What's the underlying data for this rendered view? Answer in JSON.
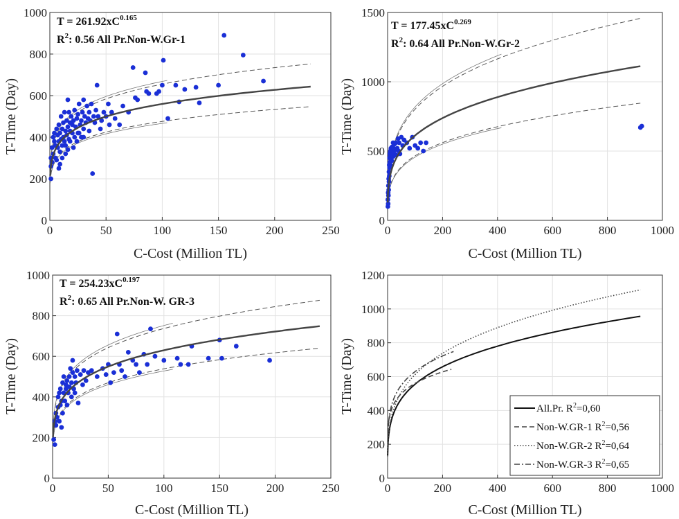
{
  "chart_data": [
    {
      "type": "scatter",
      "xlabel": "C-Cost (Million TL)",
      "ylabel": "T-Time (Day)",
      "xlim": [
        0,
        250
      ],
      "ylim": [
        0,
        1000
      ],
      "xticks": [
        0,
        50,
        100,
        150,
        200,
        250
      ],
      "yticks": [
        0,
        200,
        400,
        600,
        800,
        1000
      ],
      "grid": true,
      "annotation": {
        "line1": "T = 261.92xC",
        "line1_exp": "0.165",
        "r2_label": "R",
        "r2_exp": "2",
        "r2_text": ": 0.56 All Pr.Non-W.Gr-1"
      },
      "fit": {
        "a": 261.92,
        "b": 0.165,
        "xmax": 232
      },
      "bands": {
        "upper": 1.17,
        "lower": 0.85
      },
      "points": [
        [
          1,
          300
        ],
        [
          1,
          260
        ],
        [
          1,
          200
        ],
        [
          2,
          350
        ],
        [
          2,
          280
        ],
        [
          3,
          400
        ],
        [
          3,
          320
        ],
        [
          4,
          380
        ],
        [
          4,
          420
        ],
        [
          5,
          300
        ],
        [
          5,
          360
        ],
        [
          6,
          440
        ],
        [
          6,
          290
        ],
        [
          7,
          410
        ],
        [
          7,
          350
        ],
        [
          8,
          380
        ],
        [
          8,
          460
        ],
        [
          9,
          330
        ],
        [
          9,
          420
        ],
        [
          10,
          390
        ],
        [
          10,
          500
        ],
        [
          11,
          360
        ],
        [
          11,
          440
        ],
        [
          12,
          470
        ],
        [
          12,
          400
        ],
        [
          13,
          380
        ],
        [
          13,
          520
        ],
        [
          14,
          430
        ],
        [
          14,
          360
        ],
        [
          15,
          480
        ],
        [
          15,
          410
        ],
        [
          16,
          450
        ],
        [
          16,
          580
        ],
        [
          17,
          390
        ],
        [
          17,
          520
        ],
        [
          18,
          470
        ],
        [
          18,
          430
        ],
        [
          19,
          500
        ],
        [
          20,
          420
        ],
        [
          20,
          460
        ],
        [
          21,
          480
        ],
        [
          22,
          400
        ],
        [
          22,
          530
        ],
        [
          23,
          450
        ],
        [
          24,
          490
        ],
        [
          25,
          420
        ],
        [
          25,
          510
        ],
        [
          26,
          560
        ],
        [
          27,
          460
        ],
        [
          28,
          480
        ],
        [
          28,
          400
        ],
        [
          29,
          520
        ],
        [
          30,
          580
        ],
        [
          30,
          440
        ],
        [
          31,
          500
        ],
        [
          32,
          470
        ],
        [
          33,
          550
        ],
        [
          34,
          490
        ],
        [
          35,
          430
        ],
        [
          35,
          520
        ],
        [
          36,
          480
        ],
        [
          37,
          560
        ],
        [
          38,
          225
        ],
        [
          39,
          500
        ],
        [
          40,
          470
        ],
        [
          41,
          530
        ],
        [
          42,
          650
        ],
        [
          43,
          500
        ],
        [
          45,
          440
        ],
        [
          46,
          480
        ],
        [
          48,
          520
        ],
        [
          50,
          500
        ],
        [
          52,
          560
        ],
        [
          53,
          460
        ],
        [
          55,
          520
        ],
        [
          58,
          490
        ],
        [
          62,
          460
        ],
        [
          65,
          550
        ],
        [
          70,
          520
        ],
        [
          74,
          735
        ],
        [
          76,
          590
        ],
        [
          78,
          580
        ],
        [
          85,
          710
        ],
        [
          86,
          620
        ],
        [
          88,
          610
        ],
        [
          95,
          610
        ],
        [
          97,
          620
        ],
        [
          100,
          650
        ],
        [
          101,
          770
        ],
        [
          105,
          490
        ],
        [
          112,
          650
        ],
        [
          115,
          570
        ],
        [
          120,
          630
        ],
        [
          130,
          640
        ],
        [
          133,
          565
        ],
        [
          150,
          650
        ],
        [
          155,
          890
        ],
        [
          172,
          795
        ],
        [
          190,
          670
        ],
        [
          8,
          250
        ],
        [
          9,
          270
        ],
        [
          11,
          300
        ],
        [
          14,
          320
        ],
        [
          16,
          340
        ],
        [
          18,
          380
        ],
        [
          21,
          350
        ],
        [
          24,
          380
        ],
        [
          26,
          420
        ],
        [
          30,
          400
        ]
      ]
    },
    {
      "type": "scatter",
      "xlabel": "C-Cost (Million TL)",
      "ylabel": "T-Time (Day)",
      "xlim": [
        0,
        1000
      ],
      "ylim": [
        0,
        1500
      ],
      "xticks": [
        0,
        200,
        400,
        600,
        800,
        1000
      ],
      "yticks": [
        0,
        500,
        1000,
        1500
      ],
      "grid": true,
      "annotation": {
        "line1": "T = 177.45xC",
        "line1_exp": "0.269",
        "r2_label": "R",
        "r2_exp": "2",
        "r2_text": ": 0.64 All Pr.Non-W.Gr-2"
      },
      "fit": {
        "a": 177.45,
        "b": 0.269,
        "xmax": 920
      },
      "bands": {
        "upper": 1.31,
        "lower": 0.76
      },
      "points": [
        [
          1,
          100
        ],
        [
          1,
          150
        ],
        [
          2,
          200
        ],
        [
          2,
          120
        ],
        [
          3,
          180
        ],
        [
          3,
          250
        ],
        [
          4,
          220
        ],
        [
          4,
          300
        ],
        [
          5,
          280
        ],
        [
          5,
          350
        ],
        [
          6,
          320
        ],
        [
          6,
          400
        ],
        [
          7,
          380
        ],
        [
          7,
          450
        ],
        [
          8,
          420
        ],
        [
          8,
          480
        ],
        [
          9,
          460
        ],
        [
          10,
          400
        ],
        [
          10,
          500
        ],
        [
          12,
          440
        ],
        [
          12,
          520
        ],
        [
          14,
          480
        ],
        [
          15,
          430
        ],
        [
          16,
          530
        ],
        [
          18,
          500
        ],
        [
          20,
          460
        ],
        [
          20,
          560
        ],
        [
          22,
          520
        ],
        [
          25,
          480
        ],
        [
          25,
          550
        ],
        [
          28,
          510
        ],
        [
          30,
          560
        ],
        [
          32,
          470
        ],
        [
          35,
          520
        ],
        [
          38,
          590
        ],
        [
          40,
          500
        ],
        [
          42,
          560
        ],
        [
          45,
          480
        ],
        [
          50,
          600
        ],
        [
          55,
          540
        ],
        [
          60,
          580
        ],
        [
          70,
          560
        ],
        [
          80,
          520
        ],
        [
          90,
          600
        ],
        [
          100,
          540
        ],
        [
          110,
          520
        ],
        [
          120,
          560
        ],
        [
          130,
          500
        ],
        [
          140,
          560
        ],
        [
          920,
          670
        ],
        [
          925,
          680
        ]
      ]
    },
    {
      "type": "scatter",
      "xlabel": "C-Cost (Million TL)",
      "ylabel": "T-Time (Day)",
      "xlim": [
        0,
        250
      ],
      "ylim": [
        0,
        1000
      ],
      "xticks": [
        0,
        50,
        100,
        150,
        200,
        250
      ],
      "yticks": [
        0,
        200,
        400,
        600,
        800,
        1000
      ],
      "grid": true,
      "annotation": {
        "line1": "T = 254.23xC",
        "line1_exp": "0.197",
        "r2_label": "R",
        "r2_exp": "2",
        "r2_text": ": 0.65 All Pr.Non-W. GR-3"
      },
      "fit": {
        "a": 254.23,
        "b": 0.197,
        "xmax": 240
      },
      "bands": {
        "upper": 1.17,
        "lower": 0.855
      },
      "points": [
        [
          1,
          190
        ],
        [
          2,
          165
        ],
        [
          2,
          280
        ],
        [
          3,
          260
        ],
        [
          3,
          320
        ],
        [
          4,
          300
        ],
        [
          5,
          350
        ],
        [
          5,
          400
        ],
        [
          6,
          280
        ],
        [
          6,
          420
        ],
        [
          7,
          360
        ],
        [
          7,
          440
        ],
        [
          8,
          380
        ],
        [
          8,
          250
        ],
        [
          9,
          470
        ],
        [
          9,
          320
        ],
        [
          10,
          420
        ],
        [
          10,
          500
        ],
        [
          11,
          380
        ],
        [
          12,
          440
        ],
        [
          12,
          460
        ],
        [
          13,
          360
        ],
        [
          13,
          480
        ],
        [
          14,
          420
        ],
        [
          15,
          500
        ],
        [
          15,
          450
        ],
        [
          16,
          540
        ],
        [
          17,
          470
        ],
        [
          17,
          400
        ],
        [
          18,
          520
        ],
        [
          18,
          580
        ],
        [
          19,
          440
        ],
        [
          20,
          500
        ],
        [
          20,
          420
        ],
        [
          21,
          470
        ],
        [
          22,
          530
        ],
        [
          23,
          370
        ],
        [
          25,
          510
        ],
        [
          27,
          460
        ],
        [
          28,
          530
        ],
        [
          30,
          480
        ],
        [
          32,
          520
        ],
        [
          35,
          530
        ],
        [
          40,
          500
        ],
        [
          45,
          540
        ],
        [
          48,
          510
        ],
        [
          50,
          560
        ],
        [
          52,
          470
        ],
        [
          55,
          520
        ],
        [
          58,
          710
        ],
        [
          60,
          560
        ],
        [
          62,
          530
        ],
        [
          65,
          500
        ],
        [
          68,
          620
        ],
        [
          72,
          580
        ],
        [
          75,
          560
        ],
        [
          78,
          520
        ],
        [
          82,
          610
        ],
        [
          85,
          560
        ],
        [
          88,
          735
        ],
        [
          92,
          600
        ],
        [
          100,
          580
        ],
        [
          112,
          590
        ],
        [
          115,
          560
        ],
        [
          122,
          560
        ],
        [
          125,
          650
        ],
        [
          140,
          590
        ],
        [
          150,
          680
        ],
        [
          152,
          590
        ],
        [
          165,
          650
        ],
        [
          195,
          580
        ]
      ]
    },
    {
      "type": "line",
      "xlabel": "C-Cost (Million TL)",
      "ylabel": "T-Time (Day)",
      "xlim": [
        0,
        1000
      ],
      "ylim": [
        0,
        1200
      ],
      "xticks": [
        0,
        200,
        400,
        600,
        800,
        1000
      ],
      "yticks": [
        0,
        200,
        400,
        600,
        800,
        1000,
        1200
      ],
      "grid": true,
      "legend_position": "bottom-right",
      "series": [
        {
          "name": "All.Pr. R",
          "name_sup": "2",
          "name_tail": "=0,60",
          "a": 179.7,
          "b": 0.245,
          "xmax": 920,
          "style": "solid"
        },
        {
          "name": "Non-W.GR-1 R",
          "name_sup": "2",
          "name_tail": "=0,56",
          "a": 261.92,
          "b": 0.165,
          "xmax": 232,
          "style": "dashed"
        },
        {
          "name": "Non-W.GR-2 R",
          "name_sup": "2",
          "name_tail": "=0,64",
          "a": 177.45,
          "b": 0.269,
          "xmax": 920,
          "style": "dotted"
        },
        {
          "name": "Non-W.GR-3 R",
          "name_sup": "2",
          "name_tail": "=0,65",
          "a": 254.23,
          "b": 0.197,
          "xmax": 240,
          "style": "dashdot"
        }
      ]
    }
  ]
}
